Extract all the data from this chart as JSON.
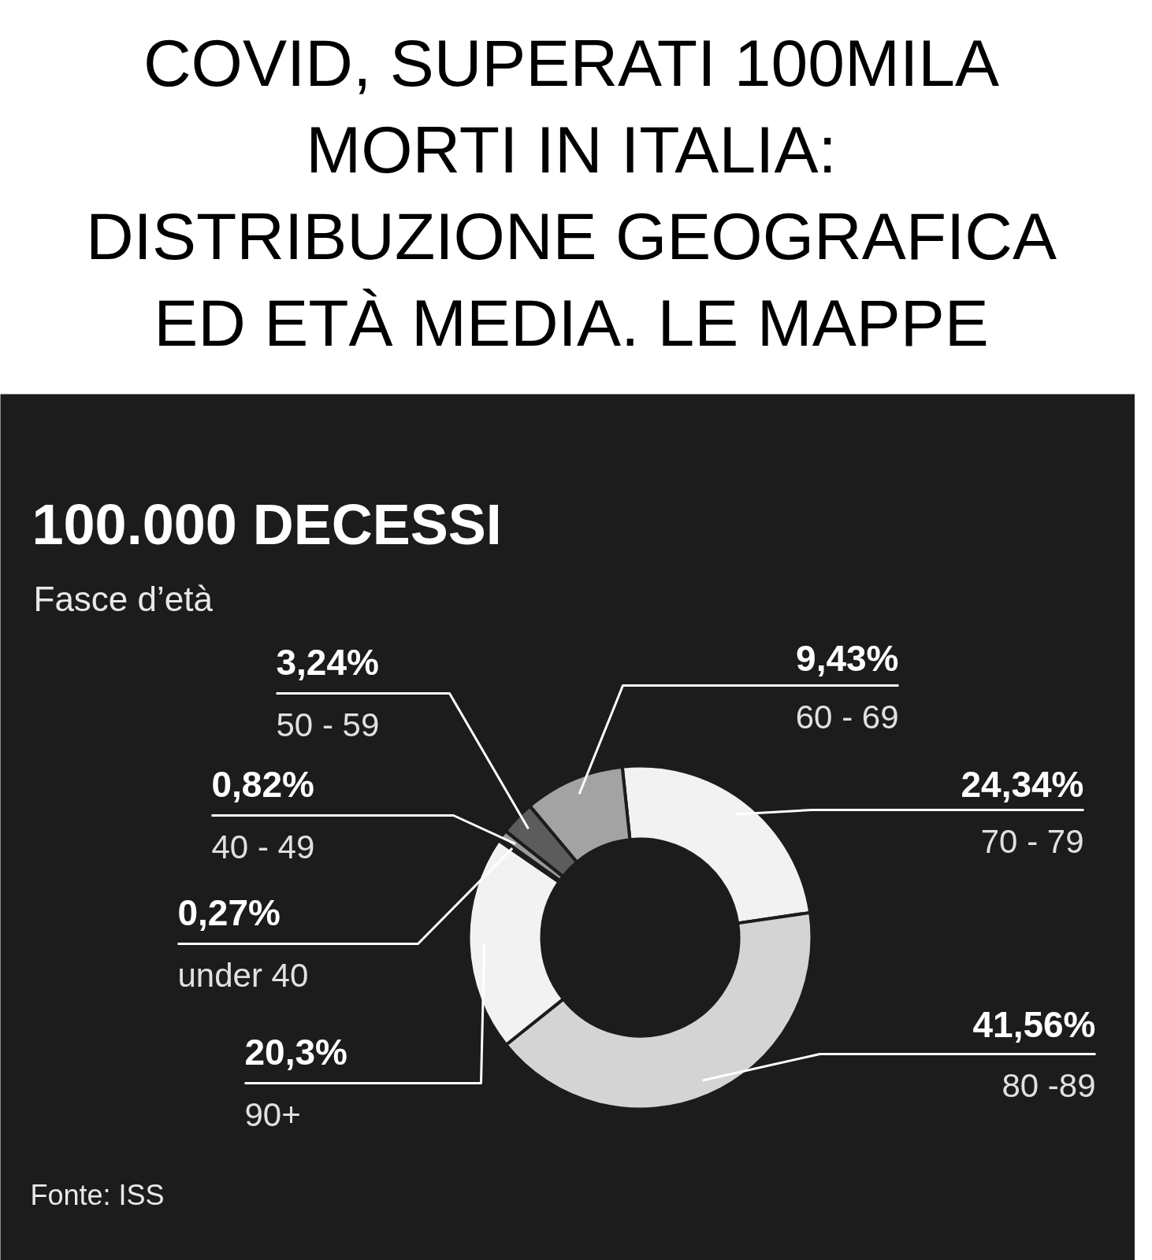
{
  "chart_data": {
    "type": "donut",
    "title": "COVID, SUPERATI 100MILA MORTI IN ITALIA: DISTRIBUZIONE GEOGRAFICA ED ETÀ MEDIA. LE MAPPE",
    "subtitle": "100.000 DECESSI",
    "annotations": [
      "Fasce d’età",
      "Fonte: ISS"
    ],
    "categories": [
      "70 - 79",
      "80 -89",
      "90+",
      "under 40",
      "40 - 49",
      "50 - 59",
      "60 - 69"
    ],
    "values": [
      24.34,
      41.56,
      20.3,
      0.27,
      0.82,
      3.24,
      9.43
    ],
    "value_labels": [
      "24,34%",
      "41,56%",
      "20,3%",
      "0,27%",
      "0,82%",
      "3,24%",
      "9,43%"
    ],
    "colors": [
      "#f2f2f2",
      "#d4d4d4",
      "#f2f2f2",
      "#ffffff",
      "#9a9a9a",
      "#5c5c5c",
      "#a3a3a3"
    ]
  }
}
